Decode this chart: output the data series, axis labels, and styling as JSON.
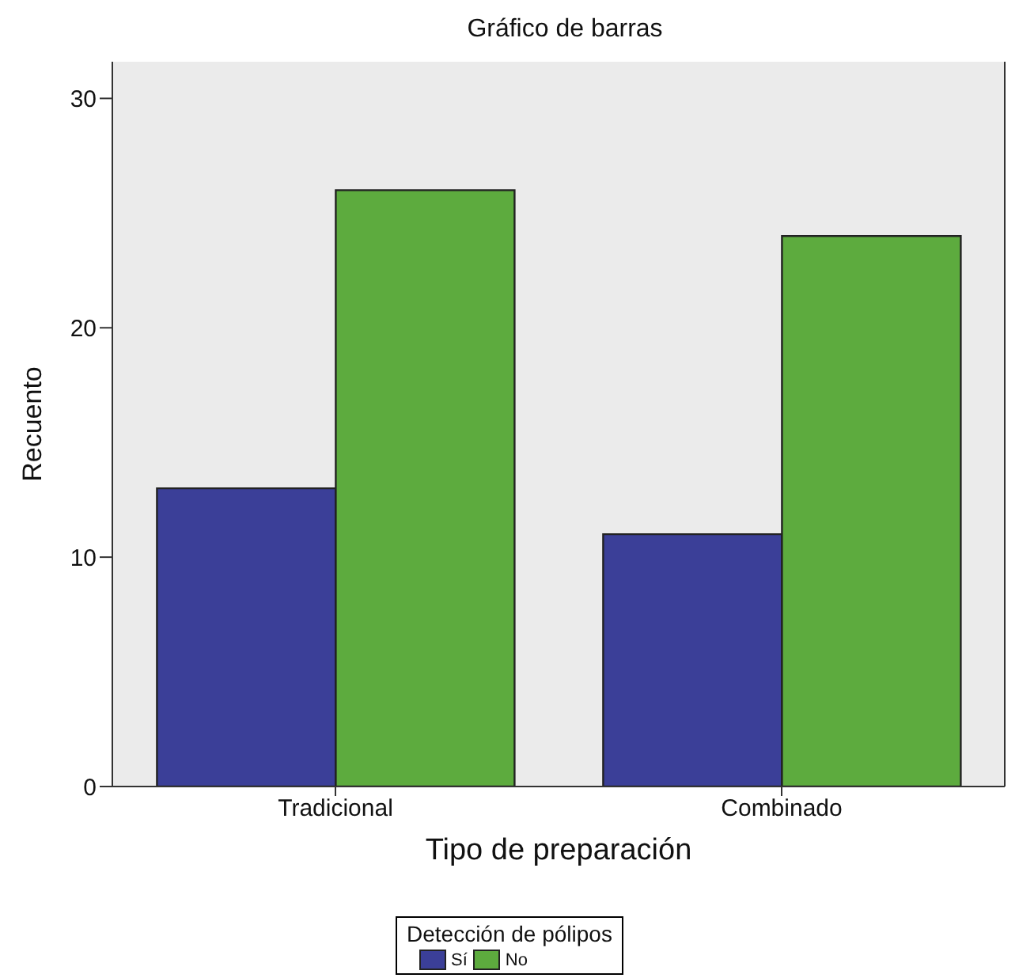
{
  "chart_data": {
    "type": "bar",
    "title": "Gráfico de barras",
    "xlabel": "Tipo de preparación",
    "ylabel": "Recuento",
    "legend_title": "Detección de pólipos",
    "categories": [
      "Tradicional",
      "Combinado"
    ],
    "series": [
      {
        "name": "Sí",
        "color": "#3b3f98",
        "values": [
          13,
          11
        ]
      },
      {
        "name": "No",
        "color": "#5dab3e",
        "values": [
          26,
          24
        ]
      }
    ],
    "ylim": [
      0,
      31.6
    ],
    "yticks": [
      0,
      10,
      20,
      30
    ],
    "grid": false,
    "legend": "bottom"
  }
}
